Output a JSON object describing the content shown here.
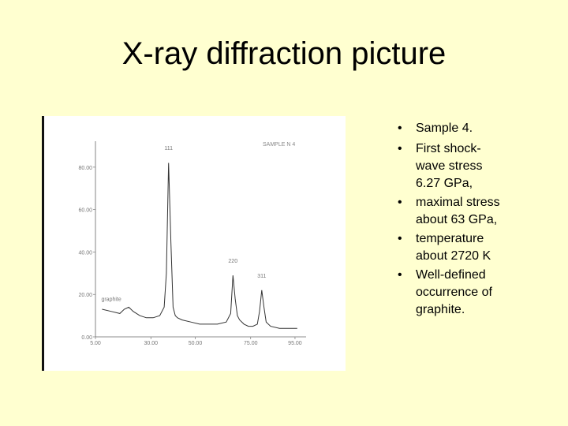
{
  "slide": {
    "title": "X-ray diffraction picture"
  },
  "bullets": [
    "Sample 4.",
    "First shock-wave stress 6.27 GPa,",
    "maximal stress about 63 GPa,",
    "temperature about 2720 K",
    "Well-defined occurrence of graphite."
  ],
  "bullet_lines": [
    [
      "Sample 4."
    ],
    [
      "First shock-",
      "wave stress",
      "6.27 GPa,"
    ],
    [
      "maximal stress",
      "about 63 GPa,"
    ],
    [
      "temperature",
      "about 2720 K"
    ],
    [
      "Well-defined",
      "occurrence of",
      "graphite."
    ]
  ],
  "chart_data": {
    "type": "line",
    "title": "SAMPLE N 4",
    "xlabel": "",
    "ylabel": "",
    "x_ticks": [
      "5.00",
      "30.00",
      "50.00",
      "75.00",
      "95.00"
    ],
    "y_ticks": [
      "0.00",
      "20.00",
      "40.00",
      "60.00",
      "80.00"
    ],
    "xlim": [
      5,
      100
    ],
    "ylim": [
      0,
      90
    ],
    "annotations": [
      "111",
      "220",
      "311",
      "graphite"
    ],
    "series": [
      {
        "x": [
          8,
          12,
          16,
          18,
          20,
          22,
          25,
          28,
          31,
          34,
          36,
          37,
          38,
          39,
          40,
          41,
          42,
          44,
          48,
          52,
          56,
          60,
          64,
          66,
          67,
          68,
          69,
          70,
          72,
          74,
          76,
          78,
          79,
          80,
          81,
          82,
          84,
          88,
          92,
          96
        ],
        "y": [
          13,
          12,
          11,
          13,
          14,
          12,
          10,
          9,
          9,
          10,
          14,
          30,
          82,
          45,
          14,
          10,
          9,
          8,
          7,
          6,
          6,
          6,
          7,
          11,
          29,
          18,
          10,
          8,
          6,
          5,
          5,
          6,
          12,
          22,
          14,
          7,
          5,
          4,
          4,
          4
        ]
      }
    ]
  }
}
